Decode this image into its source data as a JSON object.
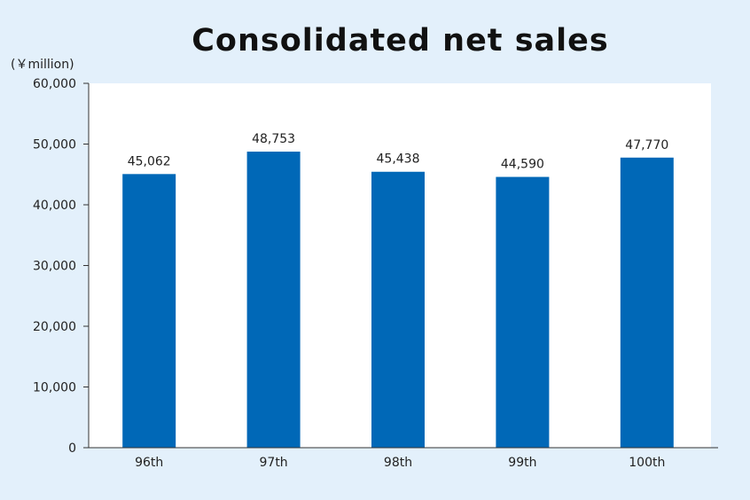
{
  "chart_data": {
    "type": "bar",
    "title": "Consolidated net sales",
    "unit": "(￥million)",
    "categories": [
      "96th",
      "97th",
      "98th",
      "99th",
      "100th"
    ],
    "values": [
      45062,
      48753,
      45438,
      44590,
      47770
    ],
    "value_labels": [
      "45,062",
      "48,753",
      "45,438",
      "44,590",
      "47,770"
    ],
    "ylim": [
      0,
      60000
    ],
    "yticks": [
      0,
      10000,
      20000,
      30000,
      40000,
      50000,
      60000
    ],
    "ytick_labels": [
      "0",
      "10,000",
      "20,000",
      "30,000",
      "40,000",
      "50,000",
      "60,000"
    ],
    "grid": false,
    "legend": "none"
  },
  "colors": {
    "bar": "#0068b7",
    "page_background": "#e3f0fb",
    "plot_background": "#ffffff"
  }
}
